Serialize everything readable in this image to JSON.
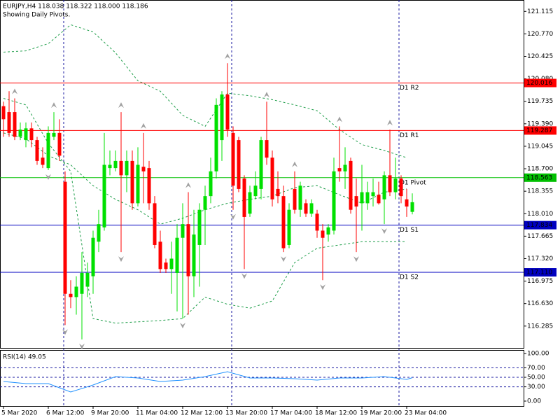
{
  "chart_data": [
    {
      "type": "candlestick",
      "title": "EURJPY,H4  118.038 118.322 118.000 118.186",
      "subtitle": "Showing Daily Pivots.",
      "categories": [
        "5 Mar 2020",
        null,
        null,
        null,
        null,
        null,
        null,
        null,
        "6 Mar 12:00",
        null,
        null,
        null,
        null,
        null,
        null,
        null,
        "9 Mar 20:00",
        null,
        null,
        null,
        null,
        null,
        null,
        null,
        "11 Mar 04:00",
        null,
        null,
        null,
        null,
        null,
        null,
        null,
        "12 Mar 12:00",
        null,
        null,
        null,
        null,
        null,
        null,
        null,
        "13 Mar 20:00",
        null,
        null,
        null,
        null,
        null,
        null,
        null,
        "17 Mar 04:00",
        null,
        null,
        null,
        null,
        null,
        null,
        null,
        "18 Mar 12:00",
        null,
        null,
        null,
        null,
        null,
        null,
        null,
        "19 Mar 20:00",
        null,
        null,
        null,
        null,
        null,
        null,
        null,
        "23 Mar 04:00",
        null
      ],
      "open": [
        119.66,
        119.57,
        119.57,
        119.19,
        119.14,
        119.32,
        119.14,
        118.87,
        118.71,
        119.19,
        119.25,
        118.5,
        116.78,
        116.73,
        116.78,
        116.89,
        117.05,
        117.58,
        117.8,
        118.71,
        118.71,
        118.82,
        118.6,
        118.82,
        118.17,
        118.73,
        118.71,
        118.17,
        117.58,
        117.26,
        117.16,
        117.1,
        117.64,
        117.85,
        117.05,
        117.53,
        118.07,
        118.28,
        118.66,
        119.14,
        119.84,
        119.25,
        119.14,
        118.55,
        118.01,
        118.28,
        118.39,
        119.14,
        118.87,
        118.39,
        118.28,
        117.53,
        118.39,
        118.07,
        118.17,
        118.01,
        118.01,
        117.75,
        117.69,
        117.75,
        118.71,
        118.66,
        118.82,
        118.28,
        118.17,
        118.17,
        118.28,
        118.3,
        118.23,
        118.6,
        118.34,
        118.55,
        118.23,
        118.038
      ],
      "high": [
        119.73,
        119.89,
        119.78,
        119.41,
        119.41,
        119.41,
        119.19,
        119.03,
        119.35,
        119.57,
        119.46,
        118.66,
        116.99,
        117.05,
        117.42,
        117.26,
        117.75,
        118.07,
        119.25,
        118.98,
        118.98,
        119.57,
        118.98,
        118.98,
        119.03,
        119.25,
        118.82,
        118.28,
        117.75,
        117.32,
        117.58,
        117.85,
        118.17,
        118.34,
        118.07,
        118.17,
        118.44,
        118.87,
        119.78,
        119.89,
        120.32,
        119.35,
        119.19,
        118.6,
        118.44,
        118.66,
        119.19,
        119.73,
        118.98,
        118.66,
        118.44,
        118.17,
        118.66,
        118.5,
        118.23,
        118.23,
        118.07,
        117.85,
        117.85,
        118.87,
        119.35,
        119.03,
        118.87,
        118.55,
        118.76,
        118.5,
        118.55,
        118.5,
        118.66,
        119.3,
        118.87,
        118.6,
        118.39,
        118.322
      ],
      "low": [
        119.19,
        119.19,
        119.14,
        119.14,
        119.03,
        119.03,
        118.76,
        118.71,
        118.68,
        119.14,
        118.82,
        116.3,
        116.56,
        116.46,
        116.08,
        116.73,
        116.78,
        117.42,
        117.75,
        118.6,
        118.66,
        117.42,
        118.34,
        118.07,
        118.12,
        118.17,
        118.07,
        117.48,
        117.1,
        117.1,
        116.78,
        116.51,
        116.4,
        116.46,
        116.73,
        116.89,
        117.53,
        118.17,
        118.55,
        118.82,
        119.19,
        118.07,
        118.34,
        117.16,
        117.96,
        118.23,
        118.23,
        118.76,
        118.12,
        118.17,
        117.42,
        117.48,
        118.01,
        117.96,
        117.96,
        117.96,
        117.64,
        116.99,
        117.58,
        117.69,
        118.5,
        118.39,
        118.01,
        117.42,
        117.75,
        118.07,
        118.12,
        118.15,
        117.85,
        118.28,
        118.23,
        118.17,
        117.96,
        118.0
      ],
      "close": [
        119.46,
        119.25,
        119.19,
        119.3,
        119.32,
        119.14,
        118.82,
        118.76,
        119.25,
        119.25,
        118.9,
        116.78,
        116.73,
        116.89,
        117.1,
        117.1,
        117.64,
        117.85,
        118.76,
        118.76,
        118.82,
        118.6,
        118.82,
        118.17,
        118.76,
        118.66,
        118.17,
        117.53,
        117.16,
        117.16,
        117.32,
        117.64,
        117.85,
        117.05,
        117.69,
        118.07,
        118.28,
        118.66,
        119.68,
        119.84,
        119.3,
        118.44,
        118.39,
        117.96,
        118.34,
        118.44,
        119.14,
        118.87,
        118.23,
        118.28,
        117.48,
        118.07,
        118.07,
        118.44,
        118.01,
        118.17,
        117.75,
        117.64,
        117.8,
        118.66,
        118.66,
        118.76,
        118.07,
        118.12,
        118.34,
        118.34,
        118.34,
        118.17,
        118.6,
        118.34,
        118.55,
        118.28,
        118.12,
        118.186
      ],
      "up_color": "#00e000",
      "down_color": "#ff0000",
      "bands": {
        "color": "#1f9e4a",
        "x": [
          0,
          4,
          8,
          12,
          16,
          20,
          24,
          28,
          32,
          36,
          40,
          44,
          48,
          52,
          56,
          60,
          64,
          68,
          72
        ],
        "upper": [
          120.49,
          120.51,
          120.62,
          120.91,
          120.8,
          120.48,
          120.05,
          119.89,
          119.52,
          119.35,
          119.86,
          119.82,
          119.76,
          119.68,
          119.59,
          119.3,
          119.07,
          118.98,
          118.87
        ],
        "middle": [
          119.25,
          119.16,
          118.9,
          118.76,
          118.44,
          118.23,
          118.07,
          117.85,
          117.94,
          118.07,
          118.17,
          118.23,
          118.28,
          118.41,
          118.44,
          118.3,
          118.17,
          118.34,
          118.39
        ],
        "lower": [
          119.78,
          119.68,
          119.09,
          118.66,
          116.4,
          116.33,
          116.35,
          116.37,
          116.4,
          116.73,
          116.62,
          116.56,
          116.67,
          117.26,
          117.48,
          117.53,
          117.58,
          117.58,
          117.58
        ]
      },
      "fractals_up": {
        "color": "#a0a0a0",
        "x": [
          2,
          9,
          21,
          25,
          33,
          40,
          47,
          52,
          60,
          69
        ],
        "values": [
          119.78,
          119.57,
          119.57,
          119.25,
          118.34,
          120.32,
          119.73,
          118.66,
          119.35,
          119.3
        ]
      },
      "fractals_down": {
        "color": "#a0a0a0",
        "x": [
          8,
          11,
          14,
          21,
          32,
          41,
          43,
          50,
          57,
          63,
          68
        ],
        "values": [
          118.68,
          116.3,
          116.08,
          117.42,
          116.4,
          118.07,
          117.16,
          117.42,
          116.99,
          117.42,
          117.85
        ]
      },
      "pivots": {
        "names": [
          "D1 R2",
          "D1 R1",
          "D1 Pivot",
          "D1 S1",
          "D1 S2"
        ],
        "values": [
          120.016,
          119.287,
          118.563,
          117.834,
          117.11
        ],
        "value_labels": [
          "120.016",
          "119.287",
          "118.563",
          "117.834",
          "117.110"
        ],
        "colors": [
          "#ff0000",
          "#ff0000",
          "#00c000",
          "#0000c0",
          "#0000c0"
        ]
      },
      "ylim": [
        115.95,
        121.29
      ],
      "yticks": [
        121.115,
        {
          "value": 120.77,
          "label": "120.770"
        },
        120.425,
        {
          "value": 120.08,
          "label": "120.080"
        },
        119.735,
        {
          "value": 119.39,
          "label": "119.390"
        },
        119.045,
        {
          "value": 118.7,
          "label": "118.700"
        },
        118.355,
        {
          "value": 118.01,
          "label": "118.010"
        },
        117.665,
        {
          "value": 117.32,
          "label": "117.320"
        },
        116.975,
        {
          "value": 116.63,
          "label": "116.630"
        },
        116.285
      ]
    },
    {
      "type": "line",
      "title": "RSI(14) 49.05",
      "color": "#1e90ff",
      "x": [
        0,
        4,
        8,
        12,
        16,
        20,
        24,
        28,
        32,
        36,
        40,
        44,
        48,
        52,
        56,
        60,
        64,
        68,
        72,
        73
      ],
      "values": [
        41.2,
        36.8,
        36.8,
        19.1,
        33.8,
        51.5,
        48.5,
        41.2,
        44.1,
        51.5,
        61.8,
        48.5,
        48.5,
        47.1,
        44.1,
        48.5,
        48.5,
        51.5,
        45.6,
        49.05
      ],
      "ylim": [
        -10.3,
        107.4
      ],
      "yticks": [
        {
          "value": 100,
          "label": "100.00"
        },
        {
          "value": 70,
          "label": "70.00"
        },
        {
          "value": 50,
          "label": "50.00"
        },
        {
          "value": 30,
          "label": "30.00"
        },
        {
          "value": 0,
          "label": "0.00"
        }
      ]
    }
  ]
}
